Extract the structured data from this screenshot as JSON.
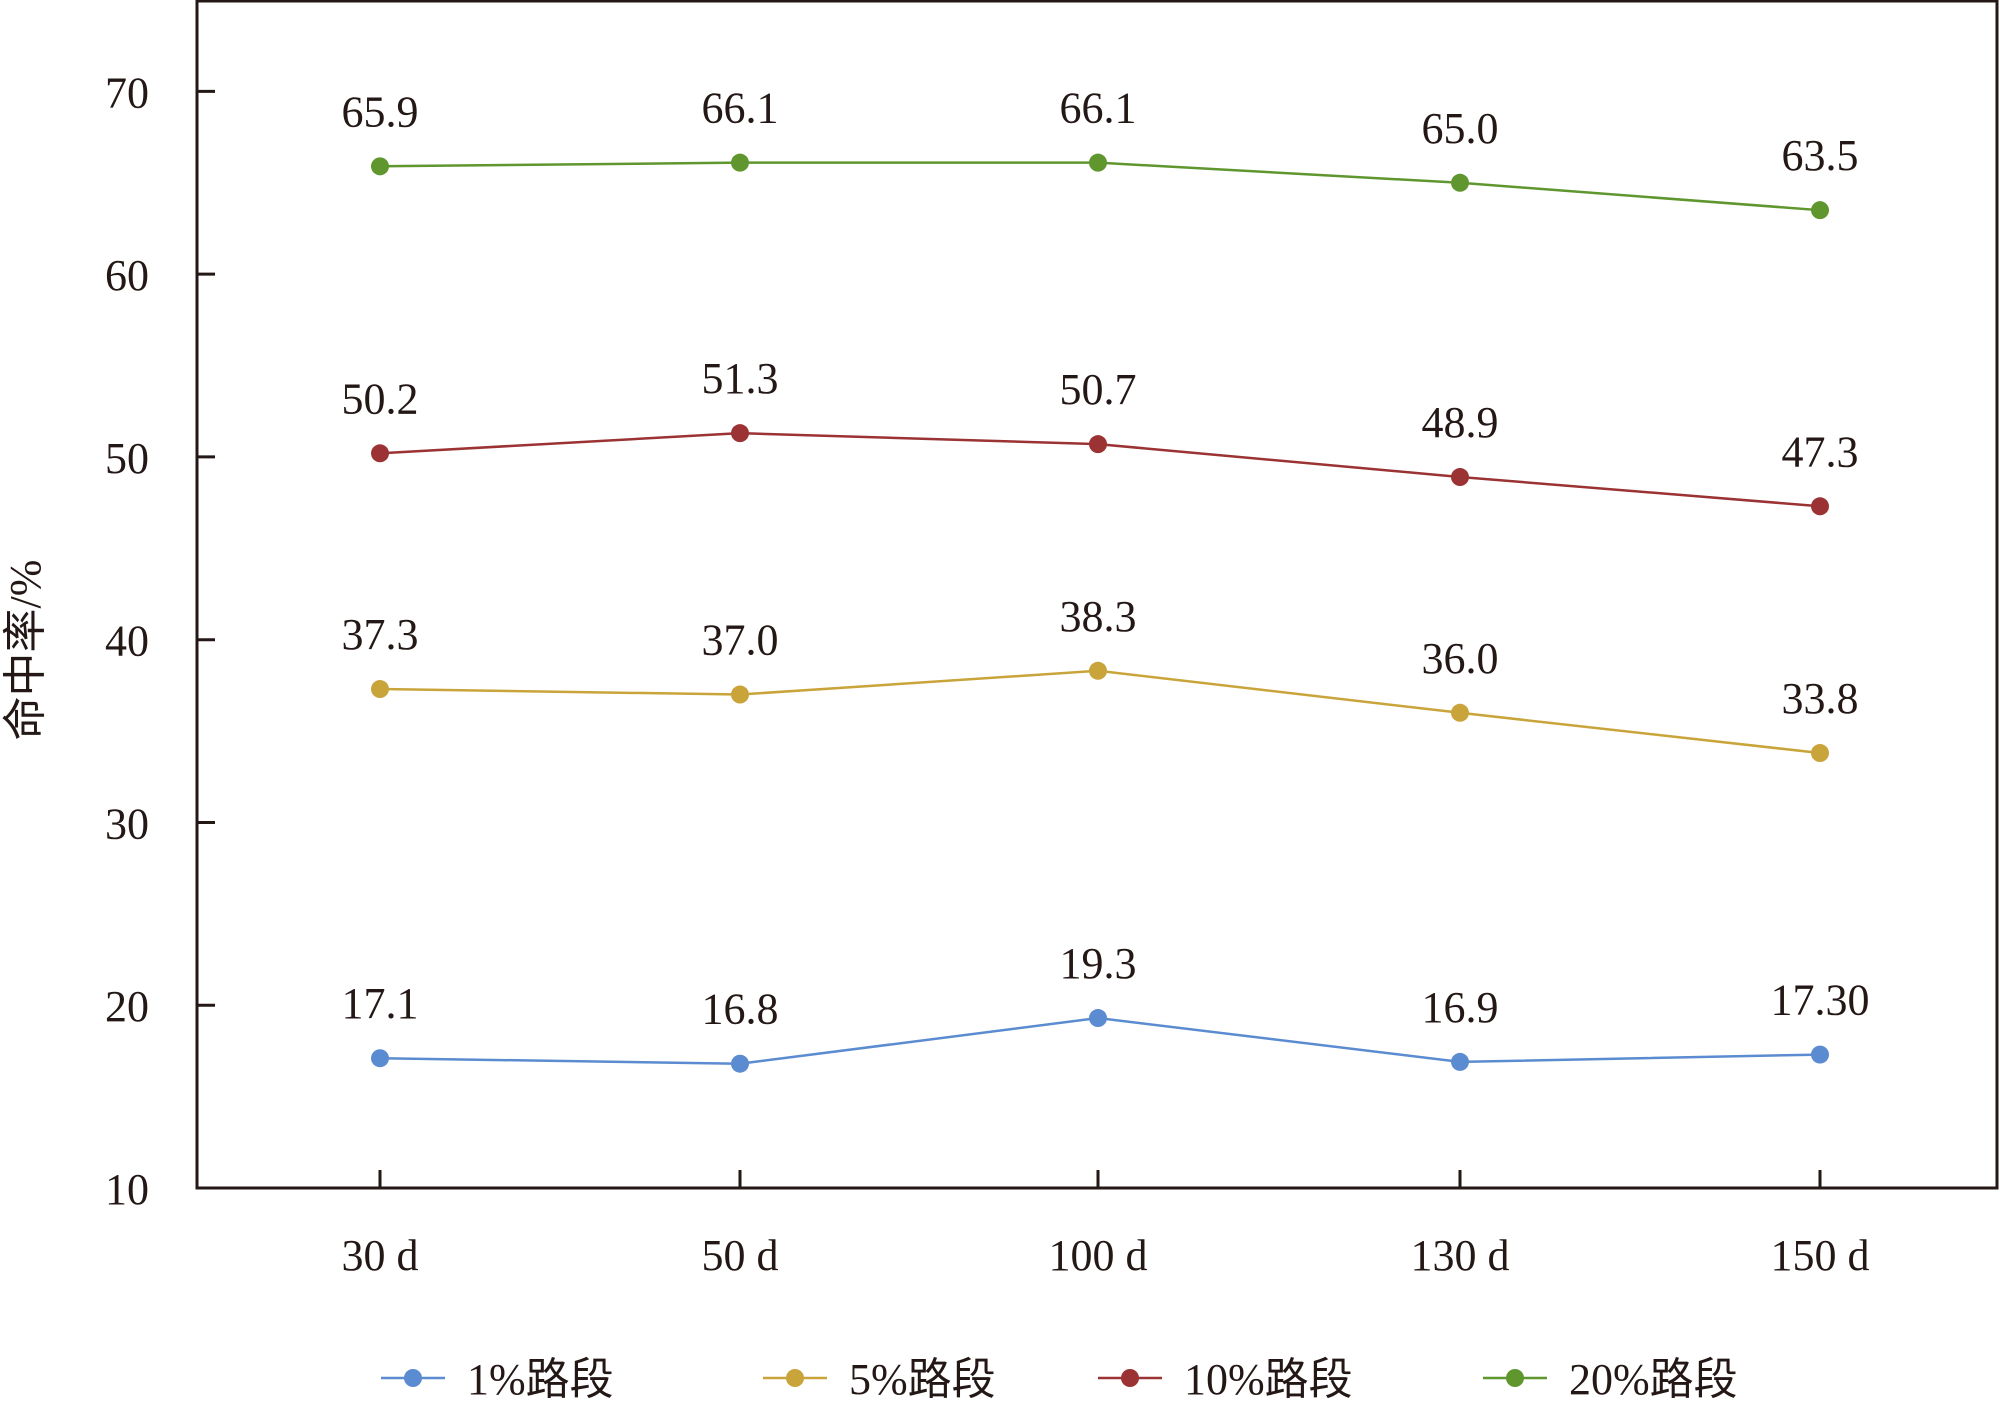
{
  "chart_data": {
    "type": "line",
    "ylabel": "命中率/%",
    "xlabel": "",
    "categories": [
      "30 d",
      "50 d",
      "100 d",
      "130 d",
      "150 d"
    ],
    "ylim": [
      10,
      75
    ],
    "yticks": [
      10,
      20,
      30,
      40,
      50,
      60,
      70
    ],
    "grid": false,
    "legend_position": "bottom",
    "series": [
      {
        "name": "1%路段",
        "color": "#5b8bd0",
        "values": [
          17.1,
          16.8,
          19.3,
          16.9,
          17.3
        ],
        "labels": [
          "17.1",
          "16.8",
          "19.3",
          "16.9",
          "17.30"
        ]
      },
      {
        "name": "5%路段",
        "color": "#c9a43a",
        "values": [
          37.3,
          37.0,
          38.3,
          36.0,
          33.8
        ],
        "labels": [
          "37.3",
          "37.0",
          "38.3",
          "36.0",
          "33.8"
        ]
      },
      {
        "name": "10%路段",
        "color": "#9b3233",
        "values": [
          50.2,
          51.3,
          50.7,
          48.9,
          47.3
        ],
        "labels": [
          "50.2",
          "51.3",
          "50.7",
          "48.9",
          "47.3"
        ]
      },
      {
        "name": "20%路段",
        "color": "#5f962e",
        "values": [
          65.9,
          66.1,
          66.1,
          65.0,
          63.5
        ],
        "labels": [
          "65.9",
          "66.1",
          "66.1",
          "65.0",
          "63.5"
        ]
      }
    ]
  }
}
